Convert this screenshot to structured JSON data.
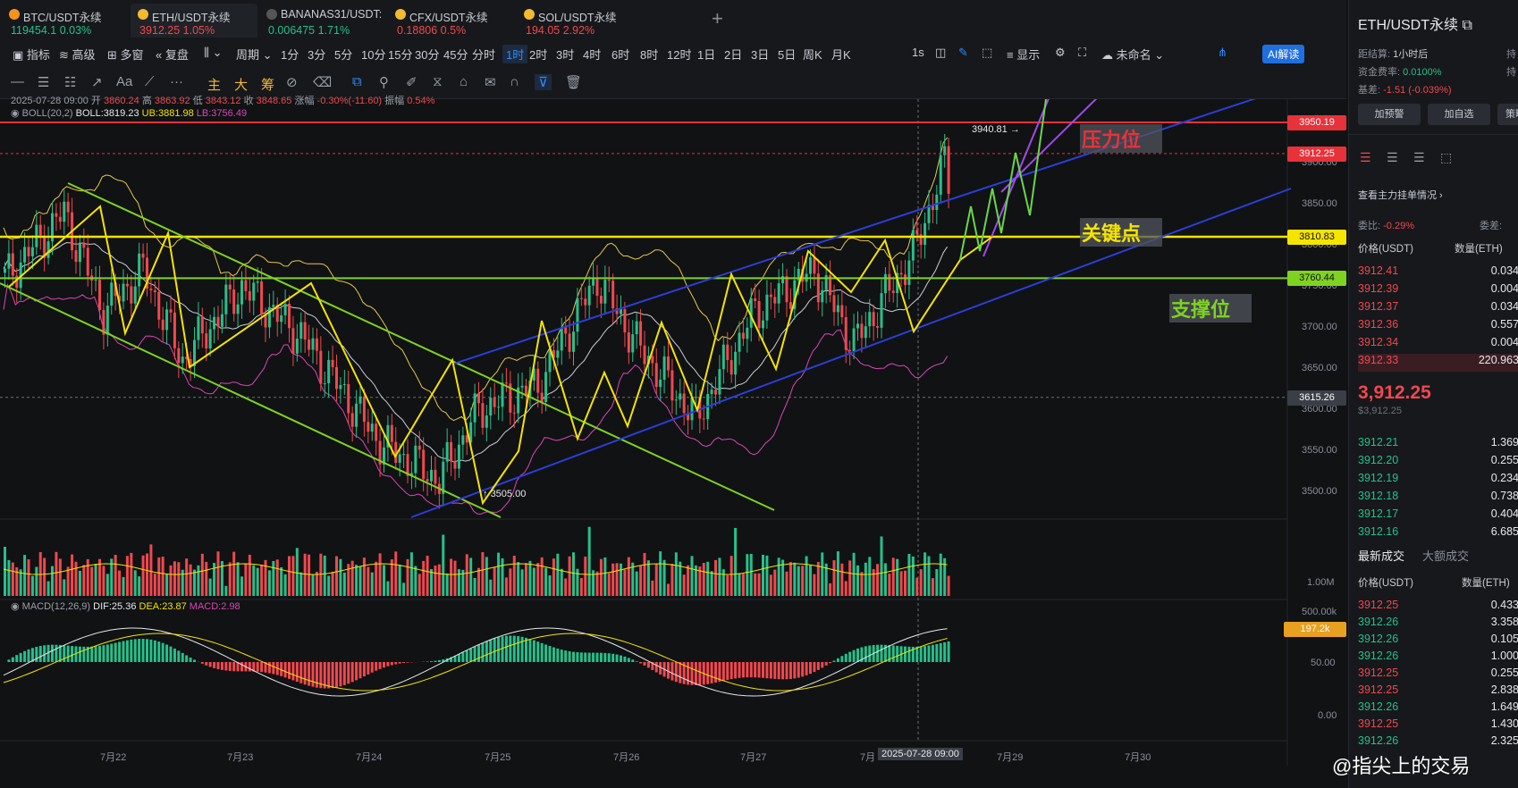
{
  "tabs": [
    {
      "name": "BTC/USDT永续",
      "price": "119454.1",
      "change": "0.03%",
      "pcolor": "#26c08a",
      "icon": "#f7931a"
    },
    {
      "name": "ETH/USDT永续",
      "price": "3912.25",
      "change": "1.05%",
      "pcolor": "#f0484e",
      "icon": "#f3ba2f"
    },
    {
      "name": "BANANAS31/USDT:",
      "price": "0.006475",
      "change": "1.71%",
      "pcolor": "#26c08a",
      "icon": "#666"
    },
    {
      "name": "CFX/USDT永续",
      "price": "0.18806",
      "change": "0.5%",
      "pcolor": "#f0484e",
      "icon": "#f3ba2f"
    },
    {
      "name": "SOL/USDT永续",
      "price": "194.05",
      "change": "2.92%",
      "pcolor": "#f0484e",
      "icon": "#f3ba2f"
    }
  ],
  "add_tab": "+",
  "toolbar": {
    "indicators": "指标",
    "advanced": "高级",
    "multi_window": "多窗",
    "replay": "复盘",
    "period": "周期",
    "intervals": [
      "1分",
      "3分",
      "5分",
      "10分",
      "15分",
      "30分",
      "45分",
      "分时",
      "1时",
      "2时",
      "3时",
      "4时",
      "6时",
      "8时",
      "12时",
      "1日",
      "2日",
      "3日",
      "5日",
      "周K",
      "月K"
    ],
    "selected_interval": "1时",
    "sec": "1s",
    "display": "显示",
    "unnamed": "未命名",
    "ai": "AI解读"
  },
  "draw_tools": {
    "labels": [
      "主",
      "大",
      "筹"
    ]
  },
  "ohlc": {
    "date": "2025-07-28 09:00",
    "open_label": "开",
    "open": "3860.24",
    "high_label": "高",
    "high": "3863.92",
    "low_label": "低",
    "low": "3843.12",
    "close_label": "收",
    "close": "3848.65",
    "chg_label": "涨幅",
    "chg": "-0.30%(-11.60)",
    "amp_label": "振幅",
    "amp": "0.54%"
  },
  "boll": {
    "label": "BOLL(20,2)",
    "mid": "BOLL:3819.23",
    "ub": "UB:3881.98",
    "lb": "LB:3756.49"
  },
  "price_axis": [
    "3950.00",
    "3900.00",
    "3850.00",
    "3800.00",
    "3750.00",
    "3700.00",
    "3650.00",
    "3600.00",
    "3550.00",
    "3500.00"
  ],
  "price_labels": [
    {
      "v": "3950.19",
      "color": "#e8323a"
    },
    {
      "v": "3912.25",
      "color": "#e8323a"
    },
    {
      "v": "3810.83",
      "color": "#f5e400"
    },
    {
      "v": "3760.44",
      "color": "#7ed321"
    },
    {
      "v": "3615.26",
      "color": "#3a3f47"
    }
  ],
  "annotations": {
    "resistance": "压力位",
    "key_point": "关键点",
    "support": "支撑位",
    "high_mark": "3940.81",
    "low_mark": "3505.00"
  },
  "volume": {
    "axis": [
      "1.00M",
      "500.00k"
    ],
    "current": "197.2k"
  },
  "macd": {
    "label": "MACD(12,26,9)",
    "dif": "DIF:25.36",
    "dea": "DEA:23.87",
    "macd": "MACD:2.98",
    "axis": [
      "50.00",
      "0.00"
    ]
  },
  "dates": [
    "7月22",
    "7月23",
    "7月24",
    "7月25",
    "7月26",
    "7月27",
    "7月",
    "2025-07-28 09:00",
    "7月29",
    "7月30"
  ],
  "right_panel": {
    "title": "ETH/USDT永续",
    "settle_label": "距结算:",
    "settle": "1小时后",
    "funding_label": "资金费率:",
    "funding": "0.0100%",
    "basis_label": "基差:",
    "basis": "-1.51 (-0.039%)",
    "hold_label": "持",
    "alert_btn": "加预警",
    "fav_btn": "加自选",
    "more_btn": "策略",
    "whale_link": "查看主力挂单情况",
    "ratio_label": "委比:",
    "ratio": "-0.29%",
    "diff_label": "委差:",
    "ob_headers": [
      "价格(USDT)",
      "数量(ETH)"
    ],
    "asks": [
      [
        "3912.41",
        "0.034"
      ],
      [
        "3912.39",
        "0.004"
      ],
      [
        "3912.37",
        "0.034"
      ],
      [
        "3912.36",
        "0.557"
      ],
      [
        "3912.34",
        "0.004"
      ],
      [
        "3912.33",
        "220.963"
      ]
    ],
    "last_price": "3,912.25",
    "last_price_usd": "$3,912.25",
    "bids": [
      [
        "3912.21",
        "1.369"
      ],
      [
        "3912.20",
        "0.255"
      ],
      [
        "3912.19",
        "0.234"
      ],
      [
        "3912.18",
        "0.738"
      ],
      [
        "3912.17",
        "0.404"
      ],
      [
        "3912.16",
        "6.685"
      ]
    ],
    "trades_tab": "最新成交",
    "big_trades_tab": "大额成交",
    "trade_headers": [
      "价格(USDT)",
      "数量(ETH)"
    ],
    "trades": [
      [
        "3912.25",
        "0.433",
        "r"
      ],
      [
        "3912.26",
        "3.358",
        "g"
      ],
      [
        "3912.26",
        "0.105",
        "g"
      ],
      [
        "3912.26",
        "1.000",
        "g"
      ],
      [
        "3912.25",
        "0.255",
        "r"
      ],
      [
        "3912.25",
        "2.838",
        "r"
      ],
      [
        "3912.26",
        "1.649",
        "g"
      ],
      [
        "3912.25",
        "1.430",
        "r"
      ],
      [
        "3912.26",
        "2.325",
        "g"
      ]
    ]
  },
  "watermark": "@指尖上的交易",
  "colors": {
    "up": "#26c08a",
    "down": "#f0484e",
    "bg": "#111214",
    "panel": "#16181b",
    "accent": "#2f8cff"
  }
}
